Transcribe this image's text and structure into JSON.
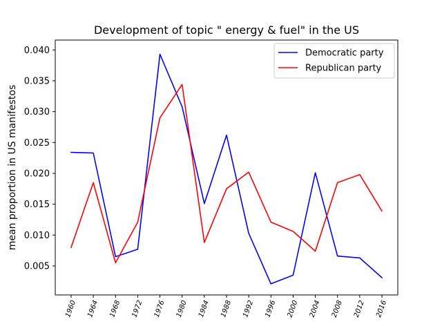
{
  "chart_data": {
    "type": "line",
    "title": "Development of topic \" energy & fuel\" in the US",
    "xlabel": "",
    "ylabel": "mean proportion in US manifestos",
    "categories": [
      "1960",
      "1964",
      "1968",
      "1972",
      "1976",
      "1980",
      "1984",
      "1988",
      "1992",
      "1996",
      "2000",
      "2004",
      "2008",
      "2012",
      "2016"
    ],
    "y_ticks": [
      "0.005",
      "0.010",
      "0.015",
      "0.020",
      "0.025",
      "0.030",
      "0.035",
      "0.040"
    ],
    "ylim": [
      0.0003,
      0.0416
    ],
    "grid": false,
    "legend_position": "top-right",
    "series": [
      {
        "name": "Democratic party",
        "color": "#0000ff",
        "values": [
          0.0234,
          0.0233,
          0.0065,
          0.0077,
          0.0393,
          0.0308,
          0.0151,
          0.0262,
          0.0103,
          0.0021,
          0.0035,
          0.0201,
          0.0066,
          0.0063,
          0.0031
        ]
      },
      {
        "name": "Republican party",
        "color": "#ff0000",
        "values": [
          0.008,
          0.0185,
          0.0055,
          0.0121,
          0.029,
          0.0344,
          0.0088,
          0.0175,
          0.0202,
          0.0121,
          0.0106,
          0.0074,
          0.0185,
          0.0198,
          0.0139
        ]
      }
    ]
  }
}
